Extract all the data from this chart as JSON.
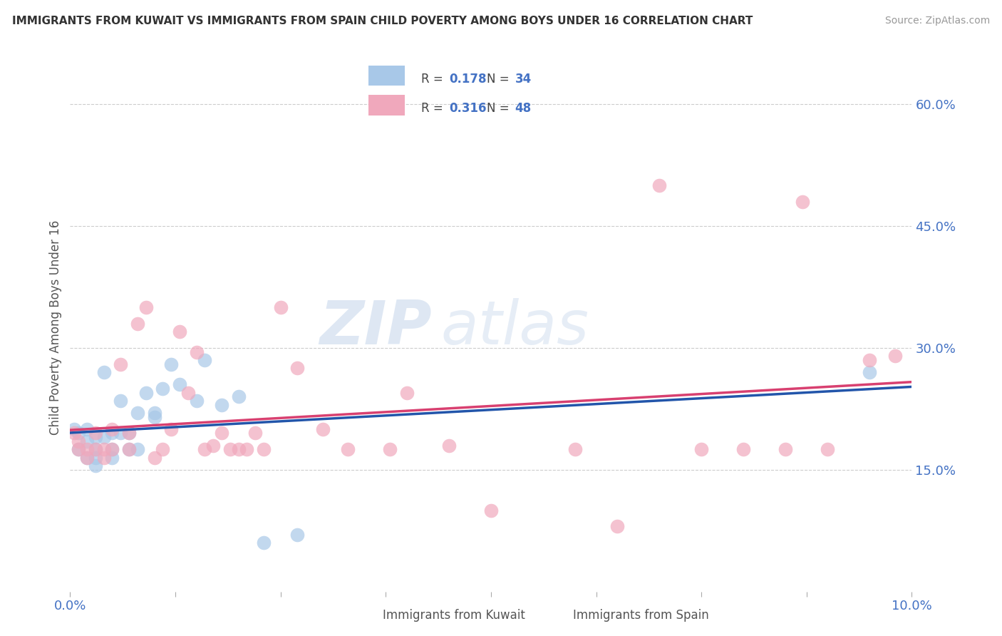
{
  "title": "IMMIGRANTS FROM KUWAIT VS IMMIGRANTS FROM SPAIN CHILD POVERTY AMONG BOYS UNDER 16 CORRELATION CHART",
  "source": "Source: ZipAtlas.com",
  "ylabel": "Child Poverty Among Boys Under 16",
  "xlim": [
    0.0,
    0.1
  ],
  "ylim": [
    0.0,
    0.65
  ],
  "ytick_labels_right": [
    "60.0%",
    "45.0%",
    "30.0%",
    "15.0%"
  ],
  "ytick_positions_right": [
    0.6,
    0.45,
    0.3,
    0.15
  ],
  "color_kuwait": "#A8C8E8",
  "color_spain": "#F0A8BC",
  "color_line_kuwait": "#2255AA",
  "color_line_spain": "#D84070",
  "color_text_blue": "#4472C4",
  "watermark_zip": "ZIP",
  "watermark_atlas": "atlas",
  "kuwait_x": [
    0.0005,
    0.001,
    0.001,
    0.002,
    0.002,
    0.002,
    0.003,
    0.003,
    0.003,
    0.003,
    0.004,
    0.004,
    0.005,
    0.005,
    0.005,
    0.006,
    0.006,
    0.007,
    0.007,
    0.008,
    0.008,
    0.009,
    0.01,
    0.01,
    0.011,
    0.012,
    0.013,
    0.015,
    0.016,
    0.018,
    0.02,
    0.023,
    0.027,
    0.095
  ],
  "kuwait_y": [
    0.2,
    0.195,
    0.175,
    0.2,
    0.185,
    0.165,
    0.19,
    0.175,
    0.165,
    0.155,
    0.27,
    0.19,
    0.195,
    0.175,
    0.165,
    0.235,
    0.195,
    0.195,
    0.175,
    0.175,
    0.22,
    0.245,
    0.22,
    0.215,
    0.25,
    0.28,
    0.255,
    0.235,
    0.285,
    0.23,
    0.24,
    0.06,
    0.07,
    0.27
  ],
  "spain_x": [
    0.0005,
    0.001,
    0.001,
    0.002,
    0.002,
    0.003,
    0.003,
    0.004,
    0.004,
    0.005,
    0.005,
    0.006,
    0.007,
    0.007,
    0.008,
    0.009,
    0.01,
    0.011,
    0.012,
    0.013,
    0.014,
    0.015,
    0.016,
    0.017,
    0.018,
    0.019,
    0.02,
    0.021,
    0.022,
    0.023,
    0.025,
    0.027,
    0.03,
    0.033,
    0.038,
    0.04,
    0.045,
    0.05,
    0.06,
    0.065,
    0.07,
    0.075,
    0.08,
    0.085,
    0.087,
    0.09,
    0.095,
    0.098
  ],
  "spain_y": [
    0.195,
    0.185,
    0.175,
    0.175,
    0.165,
    0.195,
    0.175,
    0.175,
    0.165,
    0.2,
    0.175,
    0.28,
    0.175,
    0.195,
    0.33,
    0.35,
    0.165,
    0.175,
    0.2,
    0.32,
    0.245,
    0.295,
    0.175,
    0.18,
    0.195,
    0.175,
    0.175,
    0.175,
    0.195,
    0.175,
    0.35,
    0.275,
    0.2,
    0.175,
    0.175,
    0.245,
    0.18,
    0.1,
    0.175,
    0.08,
    0.5,
    0.175,
    0.175,
    0.175,
    0.48,
    0.175,
    0.285,
    0.29
  ]
}
